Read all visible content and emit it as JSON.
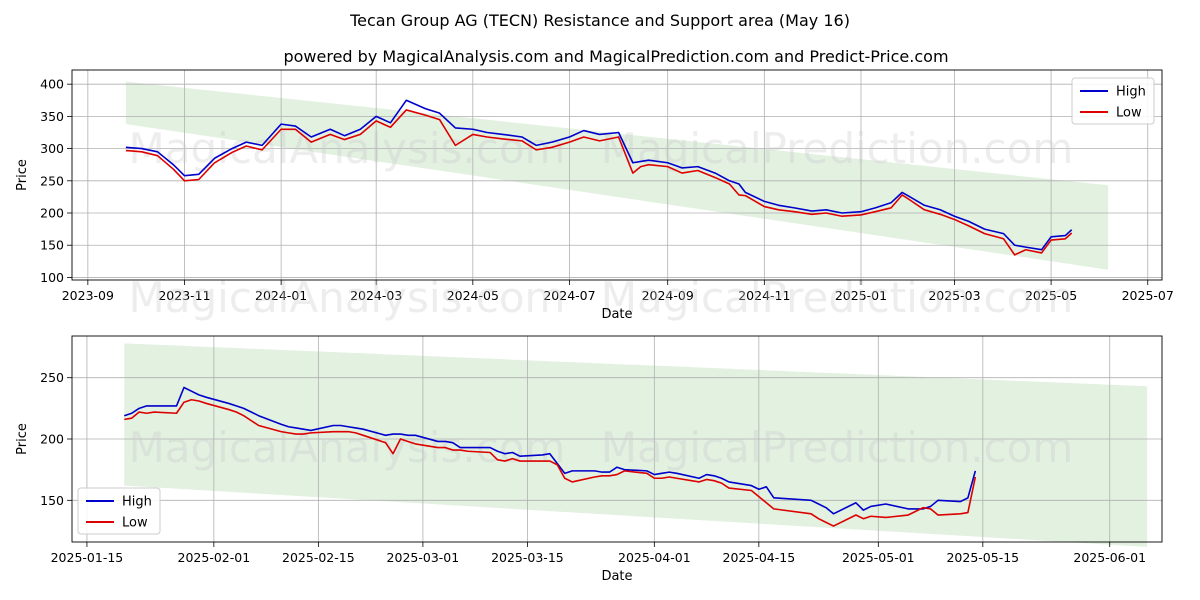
{
  "title": "Tecan Group AG (TECN) Resistance and Support area (May 16)",
  "subtitle": "powered by MagicalAnalysis.com and MagicalPrediction.com and Predict-Price.com",
  "watermark_left": "MagicalAnalysis.com",
  "watermark_right": "MagicalPrediction.com",
  "colors": {
    "high": "#0000cc",
    "low": "#dd0000",
    "band": "#d7ebd4",
    "grid": "#b0b0b0"
  },
  "chart_data": [
    {
      "type": "line",
      "xlabel": "Date",
      "ylabel": "Price",
      "xlim": [
        "2023-08-22",
        "2025-07-10"
      ],
      "ylim": [
        96,
        422
      ],
      "x_ticks": [
        "2023-09",
        "2023-11",
        "2024-01",
        "2024-03",
        "2024-05",
        "2024-07",
        "2024-09",
        "2024-11",
        "2025-01",
        "2025-03",
        "2025-05",
        "2025-07"
      ],
      "y_ticks": [
        100,
        150,
        200,
        250,
        300,
        350,
        400
      ],
      "legend": {
        "position": "top-right",
        "entries": [
          "High",
          "Low"
        ]
      },
      "band": {
        "x": [
          "2023-09-25",
          "2025-06-06"
        ],
        "upper": [
          404,
          243
        ],
        "lower": [
          338,
          112
        ]
      },
      "x": [
        "2023-09-25",
        "2023-10-05",
        "2023-10-15",
        "2023-10-25",
        "2023-11-01",
        "2023-11-10",
        "2023-11-20",
        "2023-12-01",
        "2023-12-10",
        "2023-12-20",
        "2024-01-01",
        "2024-01-10",
        "2024-01-20",
        "2024-02-01",
        "2024-02-10",
        "2024-02-20",
        "2024-03-01",
        "2024-03-10",
        "2024-03-20",
        "2024-04-01",
        "2024-04-10",
        "2024-04-20",
        "2024-05-01",
        "2024-05-10",
        "2024-05-20",
        "2024-06-01",
        "2024-06-10",
        "2024-06-20",
        "2024-07-01",
        "2024-07-10",
        "2024-07-20",
        "2024-08-01",
        "2024-08-10",
        "2024-08-15",
        "2024-08-20",
        "2024-09-01",
        "2024-09-10",
        "2024-09-20",
        "2024-10-01",
        "2024-10-10",
        "2024-10-16",
        "2024-10-20",
        "2024-11-01",
        "2024-11-10",
        "2024-11-20",
        "2024-12-01",
        "2024-12-10",
        "2024-12-20",
        "2025-01-01",
        "2025-01-10",
        "2025-01-20",
        "2025-01-27",
        "2025-02-01",
        "2025-02-10",
        "2025-02-20",
        "2025-03-01",
        "2025-03-10",
        "2025-03-20",
        "2025-04-01",
        "2025-04-08",
        "2025-04-15",
        "2025-04-25",
        "2025-05-01",
        "2025-05-10",
        "2025-05-14"
      ],
      "series": [
        {
          "name": "High",
          "values": [
            302,
            300,
            295,
            275,
            258,
            260,
            285,
            300,
            310,
            305,
            338,
            335,
            318,
            330,
            320,
            330,
            350,
            340,
            375,
            362,
            355,
            332,
            330,
            325,
            322,
            318,
            305,
            310,
            318,
            328,
            322,
            325,
            278,
            280,
            282,
            278,
            270,
            272,
            262,
            250,
            245,
            232,
            218,
            212,
            208,
            203,
            205,
            200,
            202,
            208,
            216,
            232,
            225,
            212,
            205,
            195,
            187,
            175,
            168,
            150,
            147,
            143,
            163,
            165,
            174
          ]
        },
        {
          "name": "Low",
          "values": [
            297,
            295,
            289,
            268,
            250,
            252,
            278,
            294,
            304,
            298,
            330,
            330,
            310,
            322,
            314,
            322,
            343,
            333,
            360,
            352,
            345,
            305,
            322,
            318,
            315,
            312,
            298,
            302,
            310,
            318,
            312,
            318,
            262,
            272,
            275,
            272,
            262,
            266,
            255,
            245,
            228,
            227,
            210,
            205,
            202,
            198,
            200,
            195,
            197,
            202,
            208,
            228,
            220,
            205,
            198,
            190,
            180,
            168,
            160,
            135,
            143,
            138,
            158,
            160,
            169
          ]
        }
      ]
    },
    {
      "type": "line",
      "xlabel": "Date",
      "ylabel": "Price",
      "xlim": [
        "2025-01-13",
        "2025-06-08"
      ],
      "ylim": [
        116,
        284
      ],
      "x_ticks": [
        "2025-01-15",
        "2025-02-01",
        "2025-02-15",
        "2025-03-01",
        "2025-03-15",
        "2025-04-01",
        "2025-04-15",
        "2025-05-01",
        "2025-05-15",
        "2025-06-01"
      ],
      "y_ticks": [
        150,
        200,
        250
      ],
      "legend": {
        "position": "bottom-left",
        "entries": [
          "High",
          "Low"
        ]
      },
      "band": {
        "x": [
          "2025-01-20",
          "2025-06-06"
        ],
        "upper": [
          278,
          243
        ],
        "lower": [
          162,
          112
        ]
      },
      "x": [
        "2025-01-20",
        "2025-01-21",
        "2025-01-22",
        "2025-01-23",
        "2025-01-24",
        "2025-01-27",
        "2025-01-28",
        "2025-01-29",
        "2025-01-30",
        "2025-01-31",
        "2025-02-03",
        "2025-02-04",
        "2025-02-05",
        "2025-02-06",
        "2025-02-07",
        "2025-02-10",
        "2025-02-11",
        "2025-02-12",
        "2025-02-13",
        "2025-02-14",
        "2025-02-17",
        "2025-02-18",
        "2025-02-19",
        "2025-02-20",
        "2025-02-21",
        "2025-02-24",
        "2025-02-25",
        "2025-02-26",
        "2025-02-27",
        "2025-02-28",
        "2025-03-03",
        "2025-03-04",
        "2025-03-05",
        "2025-03-06",
        "2025-03-07",
        "2025-03-10",
        "2025-03-11",
        "2025-03-12",
        "2025-03-13",
        "2025-03-14",
        "2025-03-17",
        "2025-03-18",
        "2025-03-19",
        "2025-03-20",
        "2025-03-21",
        "2025-03-24",
        "2025-03-25",
        "2025-03-26",
        "2025-03-27",
        "2025-03-28",
        "2025-03-31",
        "2025-04-01",
        "2025-04-02",
        "2025-04-03",
        "2025-04-04",
        "2025-04-07",
        "2025-04-08",
        "2025-04-09",
        "2025-04-10",
        "2025-04-11",
        "2025-04-14",
        "2025-04-15",
        "2025-04-16",
        "2025-04-17",
        "2025-04-22",
        "2025-04-23",
        "2025-04-24",
        "2025-04-25",
        "2025-04-28",
        "2025-04-29",
        "2025-04-30",
        "2025-05-02",
        "2025-05-05",
        "2025-05-06",
        "2025-05-07",
        "2025-05-08",
        "2025-05-09",
        "2025-05-12",
        "2025-05-13",
        "2025-05-14"
      ],
      "series": [
        {
          "name": "High",
          "values": [
            219,
            221,
            225,
            227,
            227,
            227,
            242,
            239,
            236,
            234,
            229,
            227,
            225,
            222,
            219,
            212,
            210,
            209,
            208,
            207,
            211,
            211,
            210,
            209,
            208,
            203,
            204,
            204,
            203,
            203,
            198,
            198,
            197,
            193,
            193,
            193,
            190,
            188,
            189,
            186,
            187,
            188,
            180,
            172,
            174,
            174,
            173,
            173,
            177,
            175,
            174,
            171,
            172,
            173,
            172,
            168,
            171,
            170,
            168,
            165,
            162,
            159,
            161,
            152,
            150,
            147,
            144,
            139,
            148,
            142,
            145,
            147,
            143,
            143,
            143,
            145,
            150,
            149,
            152,
            174
          ]
        },
        {
          "name": "Low",
          "values": [
            216,
            217,
            222,
            221,
            222,
            221,
            230,
            232,
            231,
            229,
            224,
            222,
            219,
            215,
            211,
            206,
            205,
            204,
            204,
            205,
            206,
            206,
            206,
            205,
            203,
            197,
            188,
            200,
            198,
            196,
            193,
            193,
            191,
            191,
            190,
            189,
            183,
            182,
            184,
            182,
            182,
            182,
            179,
            168,
            165,
            169,
            170,
            170,
            171,
            174,
            172,
            168,
            168,
            169,
            168,
            165,
            167,
            166,
            164,
            160,
            158,
            153,
            148,
            143,
            139,
            135,
            132,
            129,
            138,
            135,
            137,
            136,
            138,
            141,
            144,
            143,
            138,
            139,
            140,
            169
          ]
        }
      ]
    }
  ]
}
